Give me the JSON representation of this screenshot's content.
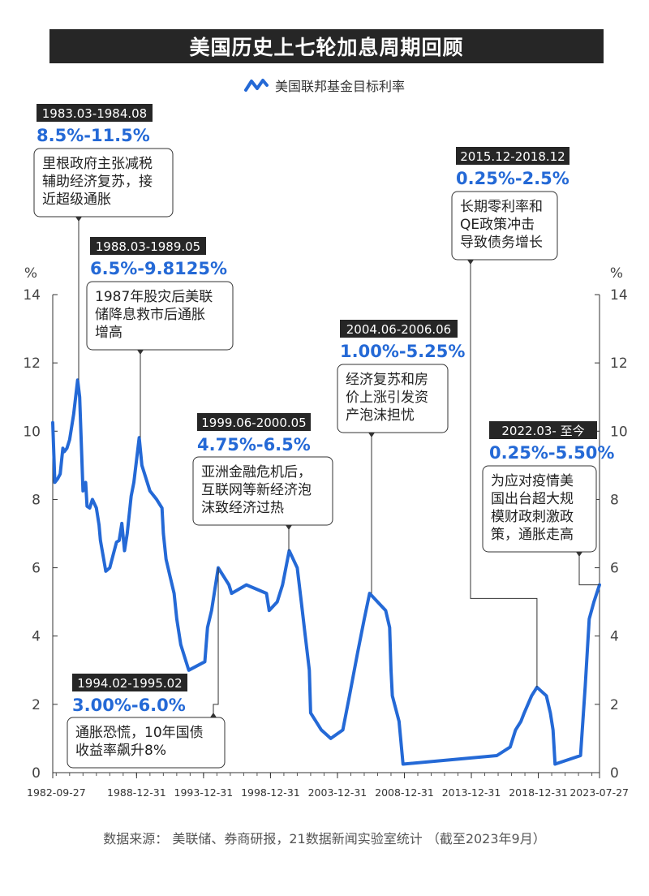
{
  "header": {
    "title": "美国历史上七轮加息周期回顾"
  },
  "legend": {
    "label": "美国联邦基金目标利率",
    "icon": "zigzag-line-icon"
  },
  "colors": {
    "line": "#2469d6",
    "dark": "#262626",
    "accent": "#2469d6"
  },
  "footer": {
    "source": "数据来源： 美联储、券商研报，21数据新闻实验室统计 （截至2023年9月）"
  },
  "chart_data": {
    "type": "line",
    "title": "美国历史上七轮加息周期回顾",
    "ylabel_left": "%",
    "ylabel_right": "%",
    "ylim": [
      0,
      14
    ],
    "yticks": [
      0,
      2,
      4,
      6,
      8,
      10,
      12,
      14
    ],
    "xlim": [
      1982.74,
      2023.57
    ],
    "xticks": [
      {
        "value": 1982.74,
        "label": "1982-09-27"
      },
      {
        "value": 1989.0,
        "label": "1988-12-31"
      },
      {
        "value": 1994.0,
        "label": "1993-12-31"
      },
      {
        "value": 1999.0,
        "label": "1998-12-31"
      },
      {
        "value": 2004.0,
        "label": "2003-12-31"
      },
      {
        "value": 2009.0,
        "label": "2008-12-31"
      },
      {
        "value": 2014.0,
        "label": "2013-12-31"
      },
      {
        "value": 2019.0,
        "label": "2018-12-31"
      },
      {
        "value": 2023.57,
        "label": "2023-07-27"
      }
    ],
    "series": [
      {
        "name": "美国联邦基金目标利率",
        "points": [
          [
            1982.74,
            10.25
          ],
          [
            1982.9,
            8.5
          ],
          [
            1983.1,
            8.6
          ],
          [
            1983.3,
            8.75
          ],
          [
            1983.5,
            9.5
          ],
          [
            1983.6,
            9.4
          ],
          [
            1983.8,
            9.5
          ],
          [
            1984.0,
            9.75
          ],
          [
            1984.3,
            10.5
          ],
          [
            1984.6,
            11.5
          ],
          [
            1984.75,
            11.0
          ],
          [
            1985.0,
            8.25
          ],
          [
            1985.2,
            8.5
          ],
          [
            1985.3,
            7.8
          ],
          [
            1985.5,
            7.75
          ],
          [
            1985.7,
            8.0
          ],
          [
            1986.0,
            7.75
          ],
          [
            1986.2,
            7.25
          ],
          [
            1986.3,
            6.8
          ],
          [
            1986.7,
            5.9
          ],
          [
            1987.0,
            6.0
          ],
          [
            1987.5,
            6.75
          ],
          [
            1987.7,
            6.8
          ],
          [
            1987.9,
            7.3
          ],
          [
            1988.1,
            6.5
          ],
          [
            1988.3,
            7.0
          ],
          [
            1988.6,
            8.1
          ],
          [
            1988.8,
            8.5
          ],
          [
            1989.2,
            9.8125
          ],
          [
            1989.4,
            9.0
          ],
          [
            1989.6,
            8.75
          ],
          [
            1989.8,
            8.5
          ],
          [
            1990.0,
            8.25
          ],
          [
            1990.5,
            8.0
          ],
          [
            1990.9,
            7.75
          ],
          [
            1991.0,
            7.0
          ],
          [
            1991.2,
            6.25
          ],
          [
            1991.5,
            5.75
          ],
          [
            1991.8,
            5.25
          ],
          [
            1992.0,
            4.5
          ],
          [
            1992.3,
            3.75
          ],
          [
            1992.7,
            3.25
          ],
          [
            1992.9,
            3.0
          ],
          [
            1994.1,
            3.25
          ],
          [
            1994.3,
            4.25
          ],
          [
            1994.6,
            4.75
          ],
          [
            1994.8,
            5.25
          ],
          [
            1995.1,
            6.0
          ],
          [
            1995.5,
            5.75
          ],
          [
            1995.9,
            5.5
          ],
          [
            1996.1,
            5.25
          ],
          [
            1997.2,
            5.5
          ],
          [
            1998.7,
            5.25
          ],
          [
            1998.9,
            4.75
          ],
          [
            1999.5,
            5.0
          ],
          [
            1999.9,
            5.5
          ],
          [
            2000.4,
            6.5
          ],
          [
            2001.0,
            6.0
          ],
          [
            2001.3,
            5.0
          ],
          [
            2001.6,
            4.0
          ],
          [
            2001.9,
            3.0
          ],
          [
            2002.0,
            1.75
          ],
          [
            2002.8,
            1.25
          ],
          [
            2003.5,
            1.0
          ],
          [
            2004.4,
            1.25
          ],
          [
            2004.9,
            2.25
          ],
          [
            2005.5,
            3.5
          ],
          [
            2006.0,
            4.5
          ],
          [
            2006.4,
            5.25
          ],
          [
            2007.6,
            4.75
          ],
          [
            2007.9,
            4.25
          ],
          [
            2008.0,
            3.0
          ],
          [
            2008.1,
            2.25
          ],
          [
            2008.6,
            1.5
          ],
          [
            2008.9,
            0.25
          ],
          [
            2015.9,
            0.5
          ],
          [
            2016.9,
            0.75
          ],
          [
            2017.3,
            1.25
          ],
          [
            2017.7,
            1.5
          ],
          [
            2017.95,
            1.75
          ],
          [
            2018.5,
            2.25
          ],
          [
            2018.9,
            2.5
          ],
          [
            2019.6,
            2.25
          ],
          [
            2019.9,
            1.75
          ],
          [
            2020.1,
            1.25
          ],
          [
            2020.25,
            0.25
          ],
          [
            2022.15,
            0.5
          ],
          [
            2022.5,
            2.5
          ],
          [
            2022.8,
            4.5
          ],
          [
            2023.15,
            5.0
          ],
          [
            2023.57,
            5.5
          ]
        ]
      }
    ],
    "annotations": [
      {
        "period": "1983.03-1984.08",
        "range": "8.5%-11.5%",
        "note": "里根政府主张减税辅助经济复苏，接近超级通胀",
        "lines": [
          "里根政府主张减税",
          "辅助经济复苏，接",
          "近超级通胀"
        ],
        "x": 1984.6,
        "y": 11.5
      },
      {
        "period": "1988.03-1989.05",
        "range": "6.5%-9.8125%",
        "note": "1987年股灾后美联储降息救市后通胀增高",
        "lines": [
          "1987年股灾后美联",
          "储降息救市后通胀",
          "增高"
        ],
        "x": 1989.2,
        "y": 9.8125
      },
      {
        "period": "1994.02-1995.02",
        "range": "3.00%-6.0%",
        "note": "通胀恐慌，10年国债收益率飙升8%",
        "lines": [
          "通胀恐慌，10年国债",
          "收益率飙升8%"
        ],
        "x": 1995.1,
        "y": 6.0
      },
      {
        "period": "1999.06-2000.05",
        "range": "4.75%-6.5%",
        "note": "亚洲金融危机后，互联网等新经济泡沫致经济过热",
        "lines": [
          "亚洲金融危机后，",
          "互联网等新经济泡",
          "沫致经济过热"
        ],
        "x": 2000.4,
        "y": 6.5
      },
      {
        "period": "2004.06-2006.06",
        "range": "1.00%-5.25%",
        "note": "经济复苏和房价上涨引发资产泡沫担忧",
        "lines": [
          "经济复苏和房",
          "价上涨引发资",
          "产泡沫担忧"
        ],
        "x": 2006.4,
        "y": 5.25
      },
      {
        "period": "2015.12-2018.12",
        "range": "0.25%-2.5%",
        "note": "长期零利率和QE政策冲击导致债务增长",
        "lines": [
          "长期零利率和",
          "QE政策冲击",
          "导致债务增长"
        ],
        "x": 2018.9,
        "y": 2.5
      },
      {
        "period": "2022.03- 至今",
        "range": "0.25%-5.50%",
        "note": "为应对疫情美国出台超大规模财政刺激政策，通胀走高",
        "lines": [
          "为应对疫情美",
          "国出台超大规",
          "模财政刺激政",
          "策，通胀走高"
        ],
        "x": 2023.57,
        "y": 5.5
      }
    ],
    "grid": false,
    "legend_position": "top-center"
  }
}
